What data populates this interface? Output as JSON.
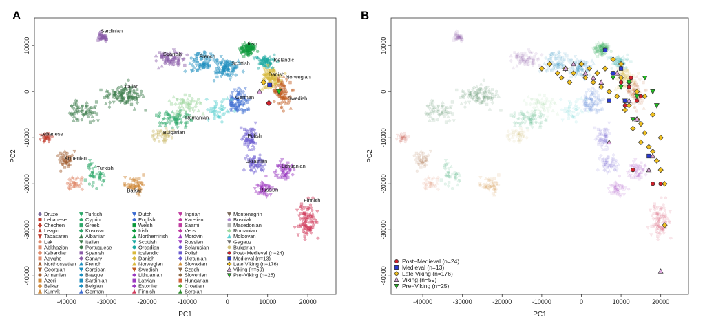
{
  "panels": [
    {
      "letter": "A",
      "xlabel": "PC1",
      "ylabel": "PC2",
      "xlim": [
        -48000,
        27000
      ],
      "ylim": [
        -44000,
        16000
      ],
      "xticks": [
        -40000,
        -30000,
        -20000,
        -10000,
        0,
        10000,
        20000
      ],
      "yticks": [
        -40000,
        -30000,
        -20000,
        -10000,
        0,
        10000
      ],
      "population_labels": [
        {
          "text": "Sardinian",
          "x": -31500,
          "y": 12800
        },
        {
          "text": "Irish",
          "x": 5000,
          "y": 10000
        },
        {
          "text": "Spanish",
          "x": -16000,
          "y": 7800
        },
        {
          "text": "French",
          "x": -7000,
          "y": 7300
        },
        {
          "text": "Scottish",
          "x": 1000,
          "y": 5800
        },
        {
          "text": "Icelandic",
          "x": 11500,
          "y": 6500
        },
        {
          "text": "Danish",
          "x": 10200,
          "y": 3400
        },
        {
          "text": "Norwegian",
          "x": 14500,
          "y": 2800
        },
        {
          "text": "Italian",
          "x": -25500,
          "y": 800
        },
        {
          "text": "German",
          "x": 2000,
          "y": -1600
        },
        {
          "text": "Swedish",
          "x": 15000,
          "y": -1800
        },
        {
          "text": "Romanian",
          "x": -10500,
          "y": -6000
        },
        {
          "text": "Bulgarian",
          "x": -16000,
          "y": -9200
        },
        {
          "text": "Lebanese",
          "x": -46500,
          "y": -9600
        },
        {
          "text": "Polish",
          "x": 5000,
          "y": -10000
        },
        {
          "text": "Armenian",
          "x": -40500,
          "y": -14800
        },
        {
          "text": "Turkish",
          "x": -32500,
          "y": -17000
        },
        {
          "text": "Ukrainian",
          "x": 4500,
          "y": -15500
        },
        {
          "text": "Lithuanian",
          "x": 13500,
          "y": -16500
        },
        {
          "text": "Balkar",
          "x": -25000,
          "y": -21800
        },
        {
          "text": "Russian",
          "x": 8000,
          "y": -21700
        },
        {
          "text": "Finnish",
          "x": 19000,
          "y": -24000
        }
      ],
      "legend": [
        [
          {
            "label": "Druze",
            "color": "#7a6a9c",
            "marker": "circle"
          },
          {
            "label": "Lebanese",
            "color": "#c0392b",
            "marker": "square"
          },
          {
            "label": "Chechen",
            "color": "#c0392b",
            "marker": "diamond"
          },
          {
            "label": "Lezgin",
            "color": "#c0392b",
            "marker": "triangle-up"
          },
          {
            "label": "Tabasaran",
            "color": "#c0392b",
            "marker": "triangle-down"
          },
          {
            "label": "Lak",
            "color": "#e08a6a",
            "marker": "circle"
          },
          {
            "label": "Abkhazian",
            "color": "#e08a6a",
            "marker": "square"
          },
          {
            "label": "Kabardian",
            "color": "#e08a6a",
            "marker": "diamond"
          },
          {
            "label": "Adyghe",
            "color": "#e08a6a",
            "marker": "square"
          },
          {
            "label": "Northossetian",
            "color": "#a05a2c",
            "marker": "triangle-up"
          },
          {
            "label": "Georgian",
            "color": "#a05a2c",
            "marker": "triangle-down"
          },
          {
            "label": "Armenian",
            "color": "#a05a2c",
            "marker": "circle"
          },
          {
            "label": "Azeri",
            "color": "#d08a3a",
            "marker": "square"
          },
          {
            "label": "Balkar",
            "color": "#d08a3a",
            "marker": "diamond"
          },
          {
            "label": "Kumyk",
            "color": "#d08a3a",
            "marker": "triangle-up"
          }
        ],
        [
          {
            "label": "Turkish",
            "color": "#2ea86a",
            "marker": "triangle-down"
          },
          {
            "label": "Cypriot",
            "color": "#2ea86a",
            "marker": "circle"
          },
          {
            "label": "Greek",
            "color": "#2ea86a",
            "marker": "square"
          },
          {
            "label": "Kosovan",
            "color": "#2ea86a",
            "marker": "diamond"
          },
          {
            "label": "Albanian",
            "color": "#3a7a4a",
            "marker": "triangle-up"
          },
          {
            "label": "Italian",
            "color": "#3a7a4a",
            "marker": "triangle-down"
          },
          {
            "label": "Portuguese",
            "color": "#3a7a4a",
            "marker": "circle"
          },
          {
            "label": "Spanish",
            "color": "#8a5aa8",
            "marker": "square"
          },
          {
            "label": "Canary",
            "color": "#8a5aa8",
            "marker": "diamond"
          },
          {
            "label": "French",
            "color": "#1e8fbf",
            "marker": "triangle-up"
          },
          {
            "label": "Corsican",
            "color": "#1e8fbf",
            "marker": "triangle-down"
          },
          {
            "label": "Basque",
            "color": "#1e8fbf",
            "marker": "circle"
          },
          {
            "label": "Sardinian",
            "color": "#1e8fbf",
            "marker": "square"
          },
          {
            "label": "Belgian",
            "color": "#1e8fbf",
            "marker": "diamond"
          },
          {
            "label": "German",
            "color": "#3a6ad0",
            "marker": "triangle-up"
          }
        ],
        [
          {
            "label": "Dutch",
            "color": "#3a6ad0",
            "marker": "triangle-down"
          },
          {
            "label": "English",
            "color": "#3a6ad0",
            "marker": "circle"
          },
          {
            "label": "Welsh",
            "color": "#0a9a3a",
            "marker": "square"
          },
          {
            "label": "Irish",
            "color": "#0a9a3a",
            "marker": "diamond"
          },
          {
            "label": "Northernirish",
            "color": "#0a9a3a",
            "marker": "triangle-up"
          },
          {
            "label": "Scottish",
            "color": "#1aa8a0",
            "marker": "triangle-down"
          },
          {
            "label": "Orcadian",
            "color": "#1aa8a0",
            "marker": "circle"
          },
          {
            "label": "Icelandic",
            "color": "#d8b83a",
            "marker": "square"
          },
          {
            "label": "Danish",
            "color": "#d8b83a",
            "marker": "diamond"
          },
          {
            "label": "Norwegian",
            "color": "#d8b83a",
            "marker": "triangle-up"
          },
          {
            "label": "Swedish",
            "color": "#c05a20",
            "marker": "triangle-down"
          },
          {
            "label": "Lithuanian",
            "color": "#9a3ac0",
            "marker": "circle"
          },
          {
            "label": "Latvian",
            "color": "#9a3ac0",
            "marker": "square"
          },
          {
            "label": "Estonian",
            "color": "#9a3ac0",
            "marker": "diamond"
          },
          {
            "label": "Finnish",
            "color": "#d03a5a",
            "marker": "triangle-up"
          }
        ],
        [
          {
            "label": "Ingrian",
            "color": "#c03aa0",
            "marker": "triangle-down"
          },
          {
            "label": "Karelian",
            "color": "#c03aa0",
            "marker": "circle"
          },
          {
            "label": "Saami",
            "color": "#c03aa0",
            "marker": "square"
          },
          {
            "label": "Veps",
            "color": "#c03aa0",
            "marker": "diamond"
          },
          {
            "label": "Mordvin",
            "color": "#a03ac0",
            "marker": "triangle-up"
          },
          {
            "label": "Russian",
            "color": "#a03ac0",
            "marker": "triangle-down"
          },
          {
            "label": "Belarusian",
            "color": "#6a5ad0",
            "marker": "circle"
          },
          {
            "label": "Polish",
            "color": "#6a5ad0",
            "marker": "square"
          },
          {
            "label": "Ukrainian",
            "color": "#6a5ad0",
            "marker": "diamond"
          },
          {
            "label": "Slovakian",
            "color": "#d0903a",
            "marker": "triangle-up"
          },
          {
            "label": "Czech",
            "color": "#8a6a4a",
            "marker": "triangle-down"
          },
          {
            "label": "Slovenian",
            "color": "#8a6a4a",
            "marker": "circle"
          },
          {
            "label": "Hungarian",
            "color": "#d0603a",
            "marker": "square"
          },
          {
            "label": "Croatian",
            "color": "#5aa83a",
            "marker": "diamond"
          },
          {
            "label": "Serbian",
            "color": "#2a8a2a",
            "marker": "triangle-up"
          }
        ],
        [
          {
            "label": "Montenegrin",
            "color": "#7a6a5a",
            "marker": "triangle-down"
          },
          {
            "label": "Bosniak",
            "color": "#b08ad0",
            "marker": "circle"
          },
          {
            "label": "Macedonian",
            "color": "#b0b0b0",
            "marker": "square"
          },
          {
            "label": "Romanian",
            "color": "#a0d8a0",
            "marker": "diamond"
          },
          {
            "label": "Moldovan",
            "color": "#5ad0d0",
            "marker": "triangle-up"
          },
          {
            "label": "Gagauz",
            "color": "#6a6a6a",
            "marker": "triangle-down"
          },
          {
            "label": "Bulgarian",
            "color": "#d0c07a",
            "marker": "circle"
          },
          {
            "label": "Post−Medieval (n=24)",
            "color": "#d0202a",
            "marker": "circle-edge"
          },
          {
            "label": "Medieval (n=13)",
            "color": "#2a3ad0",
            "marker": "square-edge"
          },
          {
            "label": "Late Viking (n=176)",
            "color": "#f0c020",
            "marker": "diamond-edge"
          },
          {
            "label": "Viking (n=59)",
            "color": "#e0a8e0",
            "marker": "triangle-up-edge"
          },
          {
            "label": "Pre−Viking (n=25)",
            "color": "#20c020",
            "marker": "triangle-down-edge"
          }
        ]
      ]
    },
    {
      "letter": "B",
      "xlabel": "PC1",
      "ylabel": "PC2",
      "xlim": [
        -48000,
        27000
      ],
      "ylim": [
        -44000,
        16000
      ],
      "xticks": [
        -40000,
        -30000,
        -20000,
        -10000,
        0,
        10000,
        20000
      ],
      "yticks": [
        -40000,
        -30000,
        -20000,
        -10000,
        0,
        10000
      ],
      "legend": [
        {
          "label": "Post−Medieval (n=24)",
          "color": "#d0202a",
          "marker": "circle-edge"
        },
        {
          "label": "Medieval (n=13)",
          "color": "#2a3ad0",
          "marker": "square-edge"
        },
        {
          "label": "Late Viking (n=176)",
          "color": "#f0c020",
          "marker": "diamond-edge"
        },
        {
          "label": "Viking (n=59)",
          "color": "#e0a8e0",
          "marker": "triangle-up-edge"
        },
        {
          "label": "Pre−Viking (n=25)",
          "color": "#20c020",
          "marker": "triangle-down-edge"
        }
      ]
    }
  ],
  "chart_data": [
    {
      "type": "scatter",
      "panel": "A",
      "xlabel": "PC1",
      "ylabel": "PC2",
      "xlim": [
        -48000,
        27000
      ],
      "ylim": [
        -44000,
        16000
      ],
      "grid": false,
      "series": [
        {
          "name": "Sardinian",
          "color": "#8a5aa8",
          "x": [
            -31500,
            -31000,
            -30500,
            -32000,
            -30000
          ],
          "y": [
            12500,
            11500,
            12000,
            11800,
            12300
          ]
        },
        {
          "name": "Spanish",
          "color": "#8a5aa8",
          "x": [
            -16000,
            -14000,
            -13000,
            -15000,
            -12000,
            -13500
          ],
          "y": [
            7000,
            8000,
            6500,
            6000,
            7500,
            5800
          ]
        },
        {
          "name": "Irish",
          "color": "#0a9a3a",
          "x": [
            4000,
            5000,
            6000,
            3500,
            6500,
            5500
          ],
          "y": [
            9500,
            9000,
            10000,
            8500,
            8800,
            8000
          ]
        },
        {
          "name": "Italian",
          "color": "#3a7a4a",
          "x": [
            -30000,
            -25000,
            -22000,
            -28000,
            -34000
          ],
          "y": [
            -3000,
            1000,
            -1000,
            -5000,
            -4000
          ]
        },
        {
          "name": "German",
          "color": "#3a6ad0",
          "x": [
            0,
            2000,
            4000,
            -2000,
            3000
          ],
          "y": [
            2000,
            -1000,
            0,
            3000,
            4000
          ]
        },
        {
          "name": "Polish",
          "color": "#6a5ad0",
          "x": [
            4000,
            5000,
            6000,
            7000
          ],
          "y": [
            -8000,
            -9000,
            -11000,
            -10000
          ]
        },
        {
          "name": "Finnish",
          "color": "#d03a5a",
          "x": [
            18000,
            19000,
            20000,
            21000
          ],
          "y": [
            -23000,
            -27000,
            -30000,
            -33000
          ]
        },
        {
          "name": "Lebanese",
          "color": "#c0392b",
          "x": [
            -46000,
            -45000,
            -44000
          ],
          "y": [
            -9500,
            -10500,
            -11000
          ]
        },
        {
          "name": "Balkar",
          "color": "#d08a3a",
          "x": [
            -25000,
            -24000,
            -22000,
            -21000
          ],
          "y": [
            -20000,
            -21000,
            -19500,
            -22000
          ]
        }
      ]
    },
    {
      "type": "scatter",
      "panel": "B",
      "xlabel": "PC1",
      "ylabel": "PC2",
      "xlim": [
        -48000,
        27000
      ],
      "ylim": [
        -44000,
        16000
      ],
      "grid": false,
      "series": [
        {
          "name": "Post−Medieval (n=24)",
          "color": "#d0202a",
          "x": [
            10000,
            12000,
            14000,
            13000,
            11000,
            18000,
            20000,
            12500,
            15000
          ],
          "y": [
            2000,
            1000,
            -2000,
            -17000,
            -3000,
            -20000,
            -20000,
            3000,
            -1000
          ]
        },
        {
          "name": "Medieval (n=13)",
          "color": "#2a3ad0",
          "x": [
            6000,
            8000,
            12000,
            11000,
            17000,
            10000,
            7000
          ],
          "y": [
            9000,
            4000,
            1000,
            -2000,
            -14000,
            5000,
            -2000
          ]
        },
        {
          "name": "Late Viking (n=176)",
          "color": "#f0c020",
          "x": [
            -10000,
            -8000,
            -6000,
            -4000,
            -2000,
            0,
            2000,
            4000,
            6000,
            8000,
            10000,
            12000,
            14000,
            16000,
            18000,
            20000,
            15000,
            17000,
            19000,
            21000,
            12000,
            14000,
            16000,
            18000,
            21000,
            20000,
            -5000,
            -3000,
            1000,
            3000,
            5000,
            7000,
            9000,
            11000,
            13000,
            8000,
            10000,
            15000
          ],
          "y": [
            5000,
            6000,
            4000,
            5000,
            4000,
            6000,
            5000,
            4000,
            5000,
            4000,
            3000,
            2000,
            0,
            -1000,
            -5000,
            -10000,
            -7000,
            -12000,
            -15000,
            -20000,
            -3000,
            -6000,
            -9000,
            -13000,
            -29000,
            -17000,
            3000,
            2000,
            3000,
            2000,
            1000,
            0,
            -1000,
            -4000,
            -8000,
            7000,
            6000,
            -11000
          ]
        },
        {
          "name": "Viking (n=59)",
          "color": "#e0a8e0",
          "x": [
            -4000,
            -2000,
            1000,
            3000,
            7000,
            12000,
            14000,
            17000,
            18000,
            20000,
            5000,
            9000
          ],
          "y": [
            5000,
            6000,
            4000,
            3000,
            -11000,
            -2000,
            -6000,
            -17000,
            -14000,
            -39000,
            2000,
            4000
          ]
        },
        {
          "name": "Pre−Viking (n=25)",
          "color": "#20c020",
          "x": [
            8000,
            10000,
            12000,
            14000,
            16000,
            18000,
            19000,
            13000,
            11000
          ],
          "y": [
            3000,
            1000,
            2000,
            -1000,
            3000,
            0,
            -3000,
            -6000,
            -2000
          ]
        }
      ]
    }
  ]
}
